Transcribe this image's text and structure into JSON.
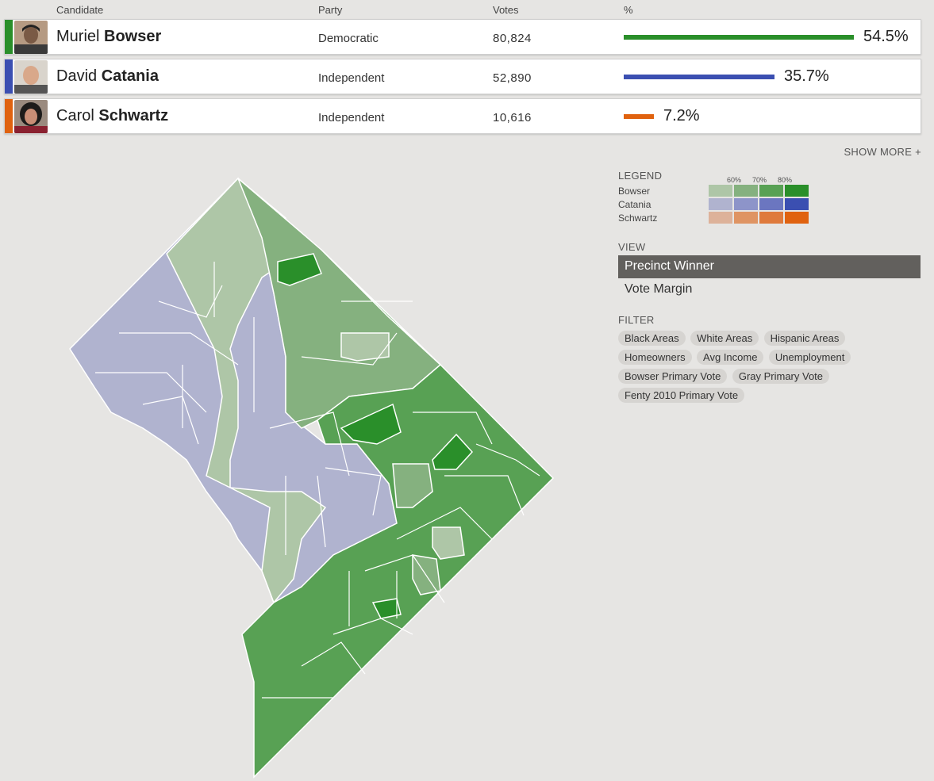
{
  "header": {
    "candidate": "Candidate",
    "party": "Party",
    "votes": "Votes",
    "percent": "%"
  },
  "candidates": [
    {
      "first": "Muriel",
      "last": "Bowser",
      "party": "Democratic",
      "votes": "80,824",
      "percent": "54.5%",
      "share": 0.545,
      "color": "#2a8f2a"
    },
    {
      "first": "David",
      "last": "Catania",
      "party": "Independent",
      "votes": "52,890",
      "percent": "35.7%",
      "share": 0.357,
      "color": "#3b4fb1"
    },
    {
      "first": "Carol",
      "last": "Schwartz",
      "party": "Independent",
      "votes": "10,616",
      "percent": "7.2%",
      "share": 0.072,
      "color": "#e0620f"
    }
  ],
  "show_more": "SHOW MORE +",
  "legend": {
    "title": "LEGEND",
    "levels": [
      "60%",
      "70%",
      "80%"
    ],
    "rows": [
      {
        "name": "Bowser",
        "colors": [
          "#aec6a7",
          "#85b17f",
          "#58a154",
          "#2a8f2a"
        ]
      },
      {
        "name": "Catania",
        "colors": [
          "#b0b3cf",
          "#8d94c9",
          "#6b76c0",
          "#3b4fb1"
        ]
      },
      {
        "name": "Schwartz",
        "colors": [
          "#ddb29a",
          "#df9463",
          "#df7a3c",
          "#e0620f"
        ]
      }
    ]
  },
  "view": {
    "title": "VIEW",
    "options": [
      "Precinct Winner",
      "Vote Margin"
    ],
    "active": "Precinct Winner"
  },
  "filter": {
    "title": "FILTER",
    "chips": [
      "Black Areas",
      "White Areas",
      "Hispanic Areas",
      "Homeowners",
      "Avg Income",
      "Unemployment",
      "Bowser Primary Vote",
      "Gray Primary Vote",
      "Fenty 2010 Primary Vote"
    ]
  },
  "map": {
    "colors": {
      "catania": "#b0b3cf",
      "bowser_light": "#aec6a7",
      "bowser_mid": "#85b17f",
      "bowser_dark": "#58a154",
      "bowser_darkest": "#2a8f2a",
      "border": "#ffffff"
    }
  }
}
